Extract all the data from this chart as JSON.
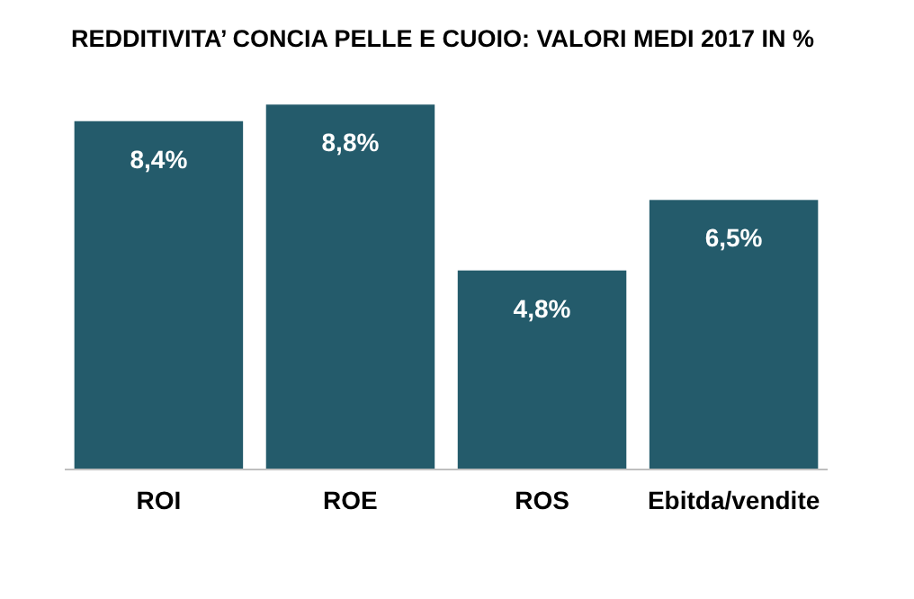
{
  "chart_data": {
    "type": "bar",
    "title": "REDDITIVITA’ CONCIA PELLE E CUOIO: VALORI MEDI 2017 IN %",
    "categories": [
      "ROI",
      "ROE",
      "ROS",
      "Ebitda/vendite"
    ],
    "values": [
      8.4,
      8.8,
      4.8,
      6.5
    ],
    "value_labels": [
      "8,4%",
      "8,8%",
      "4,8%",
      "6,5%"
    ],
    "color": "#245b6b"
  }
}
